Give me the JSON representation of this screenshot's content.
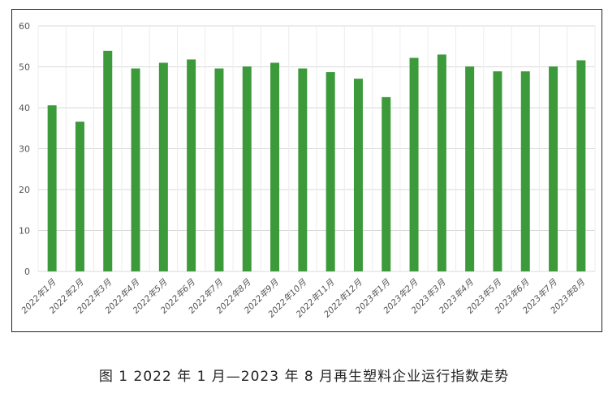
{
  "caption": "图 1  2022 年 1 月—2023 年 8 月再生塑料企业运行指数走势",
  "chart_data": {
    "type": "bar",
    "categories": [
      "2022年1月",
      "2022年2月",
      "2022年3月",
      "2022年4月",
      "2022年5月",
      "2022年6月",
      "2022年7月",
      "2022年8月",
      "2022年9月",
      "2022年10月",
      "2022年11月",
      "2022年12月",
      "2023年1月",
      "2023年2月",
      "2023年3月",
      "2023年4月",
      "2023年5月",
      "2023年6月",
      "2023年7月",
      "2023年8月"
    ],
    "values": [
      40.6,
      36.6,
      53.9,
      49.6,
      51.0,
      51.8,
      49.6,
      50.1,
      51.0,
      49.6,
      48.7,
      47.1,
      42.6,
      52.2,
      53.0,
      50.1,
      48.9,
      48.9,
      50.1,
      51.6
    ],
    "title": "",
    "xlabel": "",
    "ylabel": "",
    "ylim": [
      0,
      60
    ],
    "yticks": [
      0,
      10,
      20,
      30,
      40,
      50,
      60
    ],
    "grid": true,
    "bar_color": "#3c9a3a",
    "grid_color": "#d9d9d9"
  }
}
